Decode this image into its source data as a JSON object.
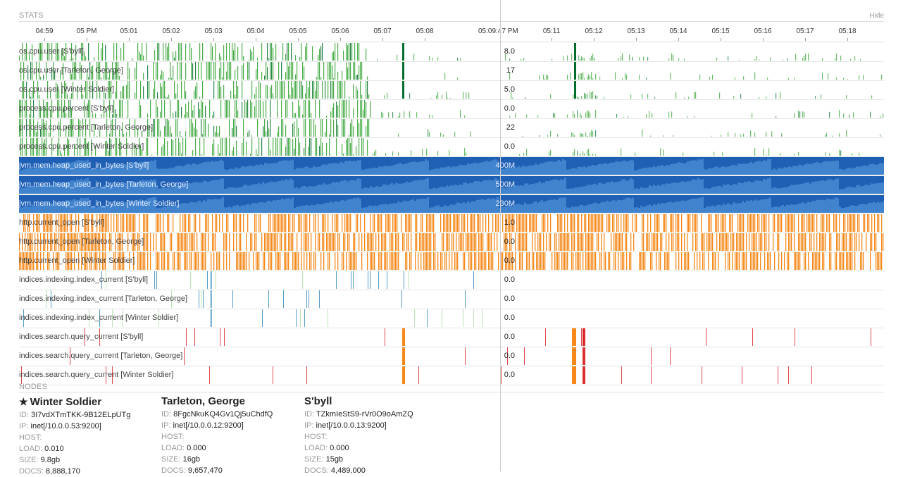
{
  "stats": {
    "title": "STATS",
    "hide_label": "Hide"
  },
  "time_axis": {
    "ticks": [
      "04:59",
      "05 PM",
      "05:01",
      "05:02",
      "05:03",
      "05:04",
      "05:05",
      "05:06",
      "05:07",
      "05:08",
      "05:11",
      "05:12",
      "05:13",
      "05:14",
      "05:15",
      "05:16",
      "05:17",
      "05:18"
    ],
    "cursor_label": "05:09:47 PM"
  },
  "rows": [
    {
      "label": "os.cpu.user [S'byll]",
      "value": "8.0",
      "kind": "cpu"
    },
    {
      "label": "os.cpu.user [Tarleton, George]",
      "value": "17",
      "kind": "cpu"
    },
    {
      "label": "os.cpu.user [Winter Soldier]",
      "value": "5.0",
      "kind": "cpu"
    },
    {
      "label": "process.cpu.percent [S'byll]",
      "value": "0.0",
      "kind": "cpu"
    },
    {
      "label": "process.cpu.percent [Tarleton, George]",
      "value": "22",
      "kind": "cpu"
    },
    {
      "label": "process.cpu.percent [Winter Soldier]",
      "value": "0.0",
      "kind": "cpu"
    },
    {
      "label": "jvm.mem.heap_used_in_bytes [S'byll]",
      "value": "400M",
      "kind": "heap"
    },
    {
      "label": "jvm.mem.heap_used_in_bytes [Tarleton, George]",
      "value": "500M",
      "kind": "heap"
    },
    {
      "label": "jvm.mem.heap_used_in_bytes [Winter Soldier]",
      "value": "230M",
      "kind": "heap"
    },
    {
      "label": "http.current_open [S'byll]",
      "value": "1.0",
      "kind": "http"
    },
    {
      "label": "http.current_open [Tarleton, George]",
      "value": "0.0",
      "kind": "http"
    },
    {
      "label": "http.current_open [Winter Soldier]",
      "value": "0.0",
      "kind": "http"
    },
    {
      "label": "indices.indexing.index_current [S'byll]",
      "value": "0.0",
      "kind": "index"
    },
    {
      "label": "indices.indexing.index_current [Tarleton, George]",
      "value": "0.0",
      "kind": "index"
    },
    {
      "label": "indices.indexing.index_current [Winter Soldier]",
      "value": "0.0",
      "kind": "index"
    },
    {
      "label": "indices.search.query_current [S'byll]",
      "value": "0.0",
      "kind": "query"
    },
    {
      "label": "indices.search.query_current [Tarleton, George]",
      "value": "0.0",
      "kind": "query"
    },
    {
      "label": "indices.search.query_current [Winter Soldier]",
      "value": "0.0",
      "kind": "query"
    }
  ],
  "colors": {
    "cpu": "#2ca02c",
    "cpu_dark": "#006d2c",
    "heap_bg": "#1f5fb4",
    "heap_light": "#4d8fd6",
    "http": "#f57c00",
    "index": "#2b83ba",
    "query": "#d7191c"
  },
  "nodes": {
    "title": "NODES",
    "items": [
      {
        "name": "Winter Soldier",
        "master": true,
        "id": "3I7vdXTmTKK-9B12ELpUTg",
        "ip": "inet[/10.0.0.53:9200]",
        "host": "",
        "load": "0.010",
        "size": "9.8gb",
        "docs": "8,888,170"
      },
      {
        "name": "Tarleton, George",
        "master": false,
        "id": "8FgcNkuKQ4Gv1Qj5uChdfQ",
        "ip": "inet[/10.0.0.12:9200]",
        "host": "",
        "load": "0.000",
        "size": "16gb",
        "docs": "9,657,470"
      },
      {
        "name": "S'byll",
        "master": false,
        "id": "TZkmIeStS9-rVr0O9oAmZQ",
        "ip": "inet[/10.0.0.13:9200]",
        "host": "",
        "load": "0.000",
        "size": "15gb",
        "docs": "4,489,000"
      }
    ],
    "labels": {
      "id": "ID:",
      "ip": "IP:",
      "host": "HOST:",
      "load": "LOAD:",
      "size": "SIZE:",
      "docs": "DOCS:"
    }
  }
}
